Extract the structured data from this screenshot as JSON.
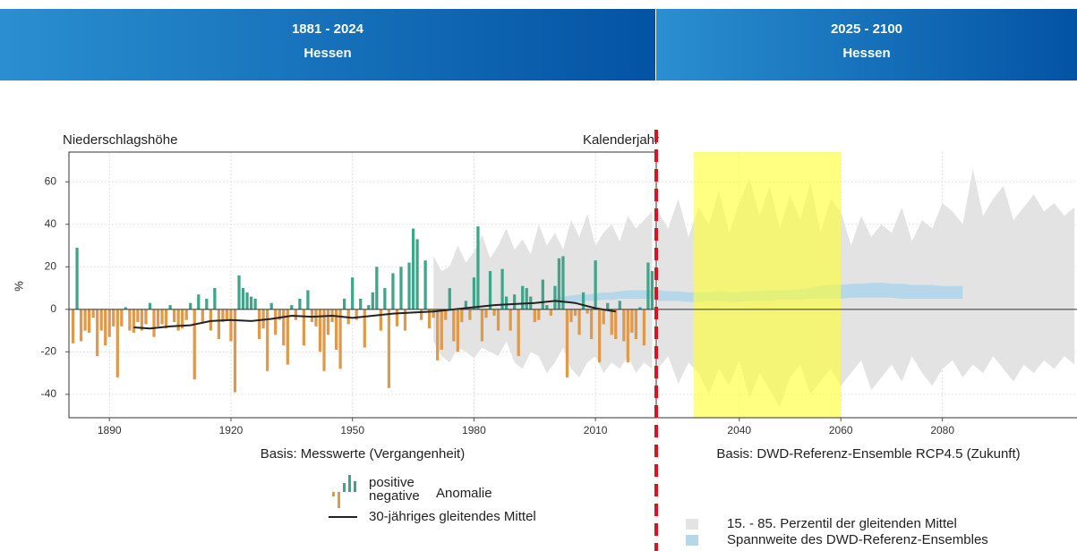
{
  "header": {
    "left": {
      "title": "1881 - 2024",
      "region": "Hessen"
    },
    "right": {
      "title": "2025 - 2100",
      "region": "Hessen"
    }
  },
  "chart_data": [
    {
      "type": "bar",
      "title": "Niederschlagshöhe",
      "y_label": "%",
      "x_label": "Kalenderjahr",
      "caption": "Basis: Messwerte (Vergangenheit)",
      "grid": true,
      "xlim": [
        1880,
        2025
      ],
      "xticks": [
        1890,
        1920,
        1950,
        1980,
        2010
      ],
      "ylim": [
        -51,
        74
      ],
      "yticks": [
        -40,
        -20,
        0,
        20,
        40,
        60
      ],
      "positive_color": "#3fa58a",
      "negative_color": "#e0994a",
      "legend": {
        "positive": "positive",
        "negative": "negative",
        "label": "Anomalie"
      },
      "x": [
        1881,
        1882,
        1883,
        1884,
        1885,
        1886,
        1887,
        1888,
        1889,
        1890,
        1891,
        1892,
        1893,
        1894,
        1895,
        1896,
        1897,
        1898,
        1899,
        1900,
        1901,
        1902,
        1903,
        1904,
        1905,
        1906,
        1907,
        1908,
        1909,
        1910,
        1911,
        1912,
        1913,
        1914,
        1915,
        1916,
        1917,
        1918,
        1919,
        1920,
        1921,
        1922,
        1923,
        1924,
        1925,
        1926,
        1927,
        1928,
        1929,
        1930,
        1931,
        1932,
        1933,
        1934,
        1935,
        1936,
        1937,
        1938,
        1939,
        1940,
        1941,
        1942,
        1943,
        1944,
        1945,
        1946,
        1947,
        1948,
        1949,
        1950,
        1951,
        1952,
        1953,
        1954,
        1955,
        1956,
        1957,
        1958,
        1959,
        1960,
        1961,
        1962,
        1963,
        1964,
        1965,
        1966,
        1967,
        1968,
        1969,
        1970,
        1971,
        1972,
        1973,
        1974,
        1975,
        1976,
        1977,
        1978,
        1979,
        1980,
        1981,
        1982,
        1983,
        1984,
        1985,
        1986,
        1987,
        1988,
        1989,
        1990,
        1991,
        1992,
        1993,
        1994,
        1995,
        1996,
        1997,
        1998,
        1999,
        2000,
        2001,
        2002,
        2003,
        2004,
        2005,
        2006,
        2007,
        2008,
        2009,
        2010,
        2011,
        2012,
        2013,
        2014,
        2015,
        2016,
        2017,
        2018,
        2019,
        2020,
        2021,
        2022,
        2023,
        2024
      ],
      "values": [
        -16,
        29,
        -15,
        -10,
        -11,
        -4,
        -22,
        -10,
        -17,
        -13,
        -8,
        -32,
        -8,
        1,
        -10,
        -11,
        -6,
        -10,
        -7,
        3,
        -13,
        -8,
        -7,
        -9,
        2,
        -6,
        -10,
        -9,
        -5,
        3,
        -33,
        7,
        -6,
        5,
        -10,
        10,
        -14,
        -6,
        -5,
        -15,
        -39,
        16,
        10,
        8,
        6,
        5,
        -14,
        -9,
        -29,
        3,
        -12,
        -5,
        -17,
        -26,
        2,
        -5,
        5,
        -17,
        9,
        -6,
        -8,
        -20,
        -29,
        -12,
        -6,
        -19,
        -28,
        5,
        -7,
        15,
        -5,
        5,
        -18,
        2,
        8,
        20,
        -10,
        10,
        -37,
        17,
        -8,
        20,
        -10,
        22,
        38,
        33,
        -5,
        23,
        -9,
        -4,
        -24,
        -19,
        -5,
        10,
        -15,
        -20,
        -6,
        4,
        -5,
        15,
        39,
        -15,
        -4,
        18,
        -3,
        -10,
        19,
        6,
        -10,
        7,
        -22,
        11,
        10,
        6,
        -6,
        -5,
        14,
        2,
        -3,
        11,
        24,
        25,
        -32,
        -6,
        -3,
        -12,
        8,
        -2,
        -14,
        23,
        -25,
        -7,
        3,
        -12,
        -14,
        4,
        -15,
        -25,
        -11,
        -14,
        1,
        -17,
        22,
        18
      ],
      "moving_average": {
        "name": "30-jähriges gleitendes Mittel",
        "color": "#222222",
        "x": [
          1896,
          1900,
          1905,
          1910,
          1915,
          1920,
          1925,
          1930,
          1935,
          1940,
          1945,
          1950,
          1955,
          1960,
          1965,
          1970,
          1975,
          1980,
          1985,
          1990,
          1995,
          2000,
          2005,
          2010,
          2015
        ],
        "values": [
          -8.5,
          -9,
          -8,
          -7.5,
          -5.5,
          -5,
          -5.5,
          -4.5,
          -3,
          -3.5,
          -3,
          -4,
          -3,
          -2,
          -1.5,
          -1,
          0,
          1,
          2,
          2.5,
          3,
          4,
          3,
          0.5,
          -1
        ]
      },
      "bands": [
        {
          "color": "#e3e3e3",
          "x": [
            1970,
            1972,
            1974,
            1976,
            1978,
            1980,
            1982,
            1984,
            1986,
            1988,
            1990,
            1992,
            1994,
            1996,
            1998,
            2000,
            2002,
            2004,
            2006,
            2008,
            2010,
            2012,
            2014,
            2016,
            2018,
            2020,
            2022,
            2024
          ],
          "upper": [
            25,
            18,
            20,
            30,
            22,
            27,
            35,
            24,
            30,
            38,
            28,
            33,
            26,
            40,
            30,
            36,
            28,
            42,
            34,
            45,
            30,
            36,
            40,
            32,
            44,
            38,
            42,
            46
          ],
          "lower": [
            -15,
            -22,
            -25,
            -18,
            -20,
            -23,
            -18,
            -20,
            -22,
            -15,
            -25,
            -28,
            -20,
            -22,
            -30,
            -25,
            -18,
            -28,
            -32,
            -25,
            -22,
            -30,
            -25,
            -28,
            -22,
            -30,
            -25,
            -28
          ]
        },
        {
          "color": "#b6d7ea",
          "x": [
            2000,
            2002,
            2004,
            2006,
            2008,
            2010,
            2012,
            2014,
            2016,
            2018,
            2020,
            2022,
            2024
          ],
          "upper": [
            5,
            6,
            6.5,
            7,
            7,
            7.5,
            8,
            8,
            8.5,
            9,
            9,
            9,
            9
          ],
          "lower": [
            3,
            3,
            3.5,
            3.5,
            4,
            4,
            4.5,
            4.5,
            5,
            5,
            5,
            5,
            5
          ]
        }
      ]
    },
    {
      "type": "area",
      "caption": "Basis: DWD-Referenz-Ensemble RCP4.5 (Zukunft)",
      "grid": true,
      "xlim": [
        2024,
        2106.5
      ],
      "xticks": [
        2040,
        2060,
        2080
      ],
      "ylim": [
        -51,
        74
      ],
      "yticks": [
        -40,
        -20,
        0,
        20,
        40,
        60
      ],
      "highlight": {
        "xlim": [
          2031,
          2060
        ],
        "color": "#ffff33"
      },
      "bands": [
        {
          "name": "Spannweite des DWD-Referenz-Ensembles",
          "color": "#e3e3e3",
          "x": [
            2024,
            2026,
            2028,
            2030,
            2032,
            2034,
            2036,
            2038,
            2040,
            2042,
            2044,
            2046,
            2048,
            2050,
            2052,
            2054,
            2056,
            2058,
            2060,
            2062,
            2064,
            2066,
            2068,
            2070,
            2072,
            2074,
            2076,
            2078,
            2080,
            2082,
            2084,
            2086,
            2088,
            2090,
            2092,
            2094,
            2096,
            2098,
            2100,
            2102,
            2104,
            2106
          ],
          "upper": [
            46,
            38,
            52,
            34,
            48,
            40,
            56,
            36,
            50,
            62,
            44,
            58,
            38,
            54,
            42,
            60,
            36,
            52,
            46,
            30,
            44,
            34,
            40,
            36,
            48,
            32,
            42,
            38,
            50,
            46,
            40,
            66,
            44,
            52,
            58,
            42,
            48,
            54,
            46,
            50,
            44,
            48
          ],
          "lower": [
            -28,
            -22,
            -35,
            -25,
            -30,
            -40,
            -28,
            -36,
            -24,
            -42,
            -30,
            -38,
            -46,
            -32,
            -26,
            -40,
            -34,
            -28,
            -36,
            -30,
            -24,
            -38,
            -32,
            -26,
            -34,
            -22,
            -30,
            -36,
            -28,
            -24,
            -32,
            -26,
            -30,
            -22,
            -28,
            -34,
            -26,
            -30,
            -24,
            -28,
            -22,
            -26
          ]
        },
        {
          "name": "15. - 85. Perzentil der gleitenden Mittel",
          "color": "#b6d7ea",
          "x": [
            2024,
            2026,
            2028,
            2030,
            2032,
            2034,
            2036,
            2038,
            2040,
            2042,
            2044,
            2046,
            2048,
            2050,
            2052,
            2054,
            2056,
            2058,
            2060,
            2062,
            2064,
            2066,
            2068,
            2070,
            2072,
            2074,
            2076,
            2078,
            2080,
            2082,
            2084
          ],
          "upper": [
            9,
            8.5,
            8.5,
            8,
            8,
            8,
            8.5,
            8,
            8,
            8.5,
            8.5,
            9,
            9,
            9,
            9.5,
            10,
            11,
            11.5,
            11.5,
            12,
            12,
            12.5,
            12.5,
            12,
            12,
            11.5,
            11.5,
            11.5,
            11,
            11,
            11
          ],
          "lower": [
            4,
            4,
            4,
            3.5,
            3.5,
            4,
            4,
            3.5,
            3.5,
            4,
            4,
            4,
            4.5,
            4.5,
            4.5,
            5,
            5,
            5,
            5,
            5.5,
            5.5,
            5.5,
            5.5,
            5.5,
            5,
            5,
            5,
            5,
            5,
            5,
            5
          ]
        }
      ]
    }
  ]
}
